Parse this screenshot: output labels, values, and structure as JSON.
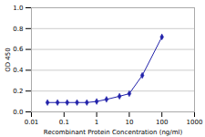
{
  "chart_data": {
    "type": "line",
    "x": [
      0.031,
      0.063,
      0.125,
      0.25,
      0.5,
      1,
      2,
      5,
      10,
      25,
      100
    ],
    "values": [
      0.09,
      0.09,
      0.09,
      0.09,
      0.09,
      0.1,
      0.12,
      0.15,
      0.175,
      0.35,
      0.72
    ],
    "color": "#2222aa",
    "marker": "diamond",
    "xlabel": "Recombinant Protein Concentration (ng/ml)",
    "ylabel": "OD 450",
    "log": "x",
    "xlim": [
      0.01,
      1000
    ],
    "xticks": [
      0.01,
      0.1,
      1,
      10,
      100,
      1000
    ],
    "ylim": [
      0,
      1.0
    ],
    "yticks": [
      {
        "value": 0,
        "label": "0.0"
      },
      0.2,
      0.4,
      0.6,
      0.8,
      {
        "value": 1,
        "label": "1.0"
      }
    ],
    "grid": "y"
  }
}
